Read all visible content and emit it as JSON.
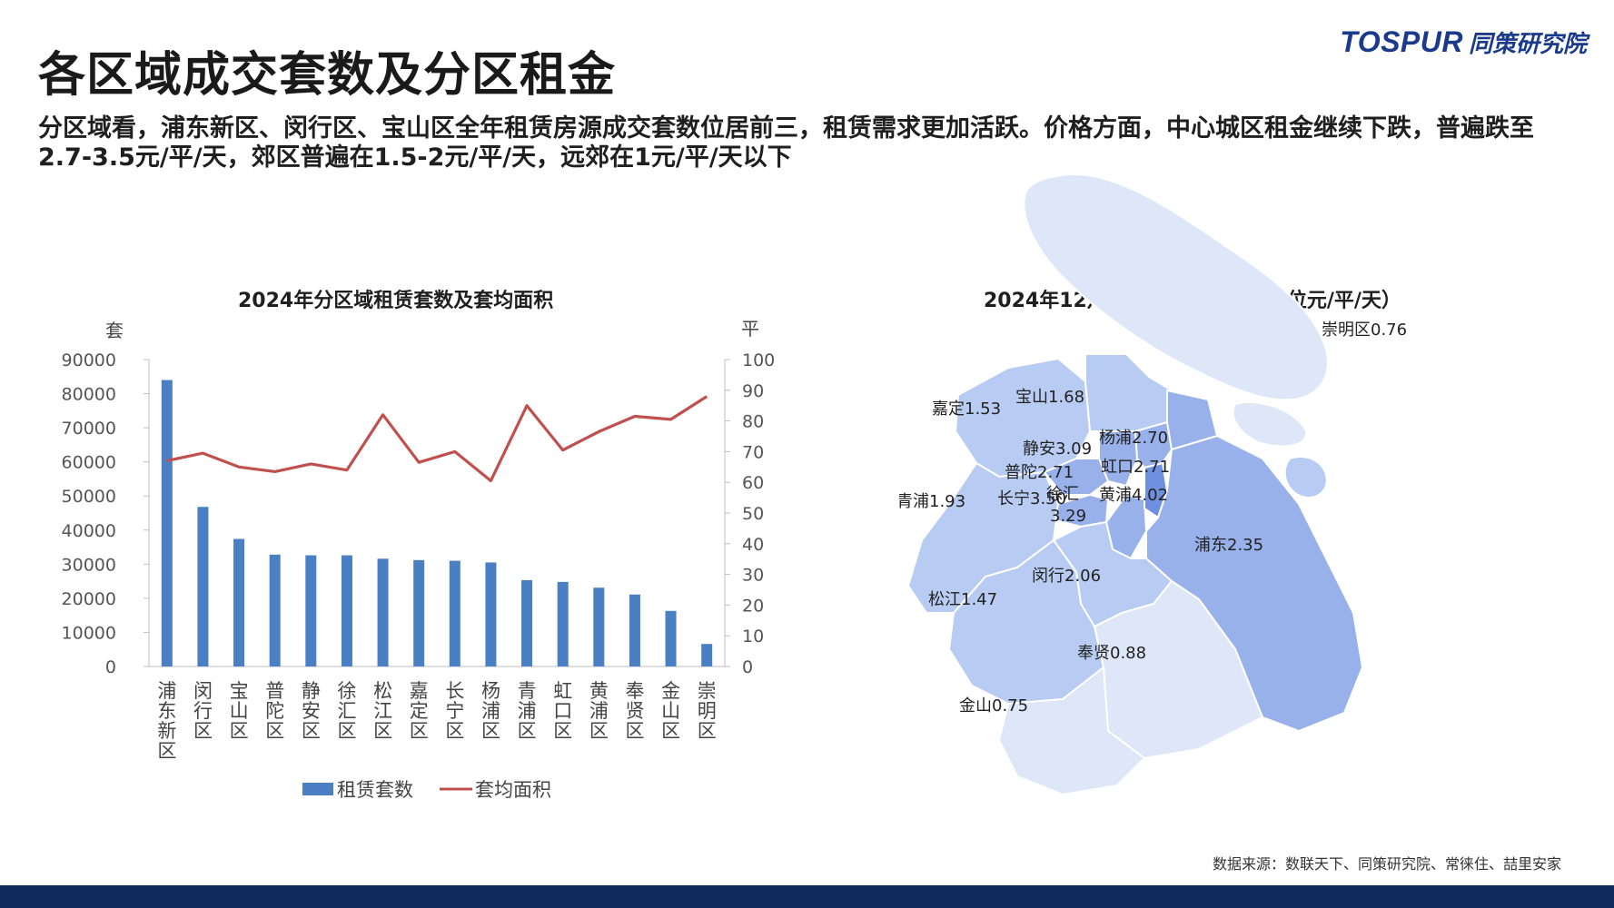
{
  "page": {
    "title": "各区域成交套数及分区租金",
    "subtitle": "分区域看，浦东新区、闵行区、宝山区全年租赁房源成交套数位居前三，租赁需求更加活跃。价格方面，中心城区租金继续下跌，普遍跌至2.7-3.5元/平/天，郊区普遍在1.5-2元/平/天，远郊在1元/平/天以下",
    "logo_en": "TOSPUR",
    "logo_cn": "同策研究院",
    "source": "数据来源：数联天下、同策研究院、常徕住、喆里安家"
  },
  "colors": {
    "bar": "#4a7fc4",
    "line": "#c0504d",
    "map_light": "#dde7f8",
    "map_mid": "#b8cbf2",
    "map_dark": "#98b1ea",
    "map_darkest": "#6f8fe0",
    "footer": "#0f2a5c"
  },
  "chart_data": [
    {
      "type": "bar+line",
      "title": "2024年分区域租赁套数及套均面积",
      "ylabel_left": "套",
      "ylabel_right": "平",
      "ylim_left": [
        0,
        90000
      ],
      "ylim_right": [
        0,
        100
      ],
      "yticks_left": [
        "0",
        "10000",
        "20000",
        "30000",
        "40000",
        "50000",
        "60000",
        "70000",
        "80000",
        "90000"
      ],
      "yticks_right": [
        "0",
        "10",
        "20",
        "30",
        "40",
        "50",
        "60",
        "70",
        "80",
        "90",
        "100"
      ],
      "categories": [
        "浦东新区",
        "闵行区",
        "宝山区",
        "普陀区",
        "静安区",
        "徐汇区",
        "松江区",
        "嘉定区",
        "长宁区",
        "杨浦区",
        "青浦区",
        "虹口区",
        "黄浦区",
        "奉贤区",
        "金山区",
        "崇明区"
      ],
      "series": [
        {
          "name": "租赁套数",
          "axis": "left",
          "type": "bar",
          "values": [
            84000,
            46800,
            37400,
            32800,
            32600,
            32600,
            31600,
            31200,
            31000,
            30500,
            25300,
            24800,
            23100,
            21100,
            16300,
            6600
          ]
        },
        {
          "name": "套均面积",
          "axis": "right",
          "type": "line",
          "values": [
            67,
            69.5,
            65,
            63.5,
            66,
            64,
            82,
            66.5,
            70,
            60.5,
            85,
            70.5,
            76.5,
            81.5,
            80.5,
            88
          ]
        }
      ],
      "legend_position": "bottom",
      "grid": false
    },
    {
      "type": "map",
      "title": "2024年12月分区域成交租金（单位元/平/天）",
      "regions": [
        {
          "name": "崇明区",
          "value": "0.76",
          "label": "崇明区0.76"
        },
        {
          "name": "嘉定",
          "value": "1.53",
          "label": "嘉定1.53"
        },
        {
          "name": "宝山",
          "value": "1.68",
          "label": "宝山1.68"
        },
        {
          "name": "杨浦",
          "value": "2.70",
          "label": "杨浦2.70"
        },
        {
          "name": "静安",
          "value": "3.09",
          "label": "静安3.09"
        },
        {
          "name": "虹口",
          "value": "2.71",
          "label": "虹口2.71"
        },
        {
          "name": "普陀",
          "value": "2.71",
          "label": "普陀2.71"
        },
        {
          "name": "黄浦",
          "value": "4.02",
          "label": "黄浦4.02"
        },
        {
          "name": "青浦",
          "value": "1.93",
          "label": "青浦1.93"
        },
        {
          "name": "长宁",
          "value": "3.50",
          "label": "长宁3.50"
        },
        {
          "name": "徐汇",
          "value": "3.29",
          "label": "徐汇"
        },
        {
          "name": "浦东",
          "value": "2.35",
          "label": "浦东2.35"
        },
        {
          "name": "闵行",
          "value": "2.06",
          "label": "闵行2.06"
        },
        {
          "name": "松江",
          "value": "1.47",
          "label": "松江1.47"
        },
        {
          "name": "奉贤",
          "value": "0.88",
          "label": "奉贤0.88"
        },
        {
          "name": "金山",
          "value": "0.75",
          "label": "金山0.75"
        }
      ]
    }
  ]
}
